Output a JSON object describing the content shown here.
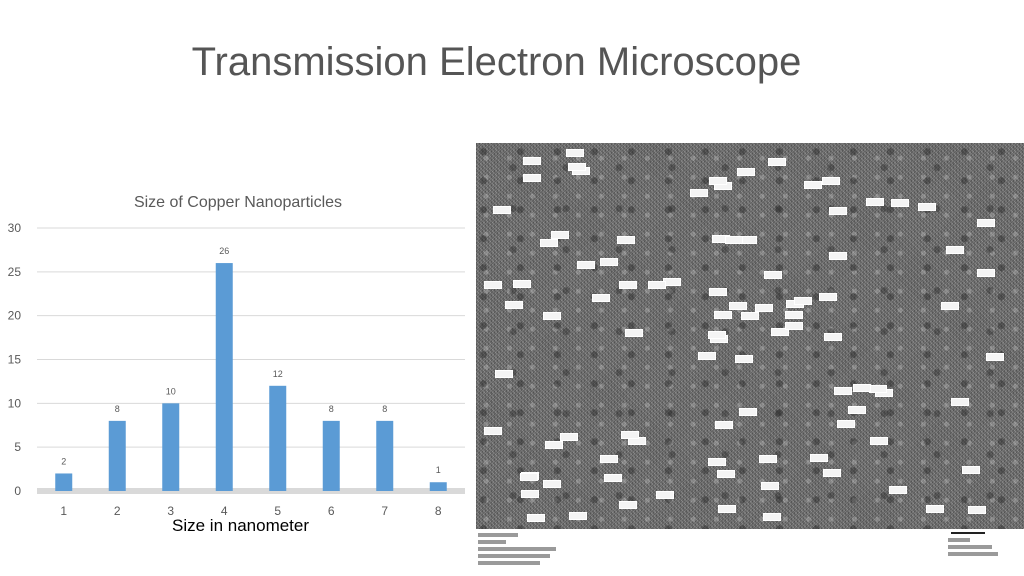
{
  "slide": {
    "title": "Transmission Electron Microscope"
  },
  "chart_data": {
    "type": "bar",
    "title": "Size of Copper Nanoparticles",
    "xlabel": "Size in nanometer",
    "ylabel": "",
    "categories": [
      "1",
      "2",
      "3",
      "4",
      "5",
      "6",
      "7",
      "8"
    ],
    "values": [
      2,
      8,
      10,
      26,
      12,
      8,
      8,
      1
    ],
    "data_labels": [
      "2",
      "8",
      "10",
      "26",
      "12",
      "8",
      "8",
      "1"
    ],
    "ylim": [
      0,
      30
    ],
    "yticks": [
      "0",
      "5",
      "10",
      "15",
      "20",
      "25",
      "30"
    ],
    "grid": true,
    "legend": "none",
    "bar_color": "#5b9bd5"
  },
  "image_panel": {
    "kind": "tem-micrograph"
  }
}
